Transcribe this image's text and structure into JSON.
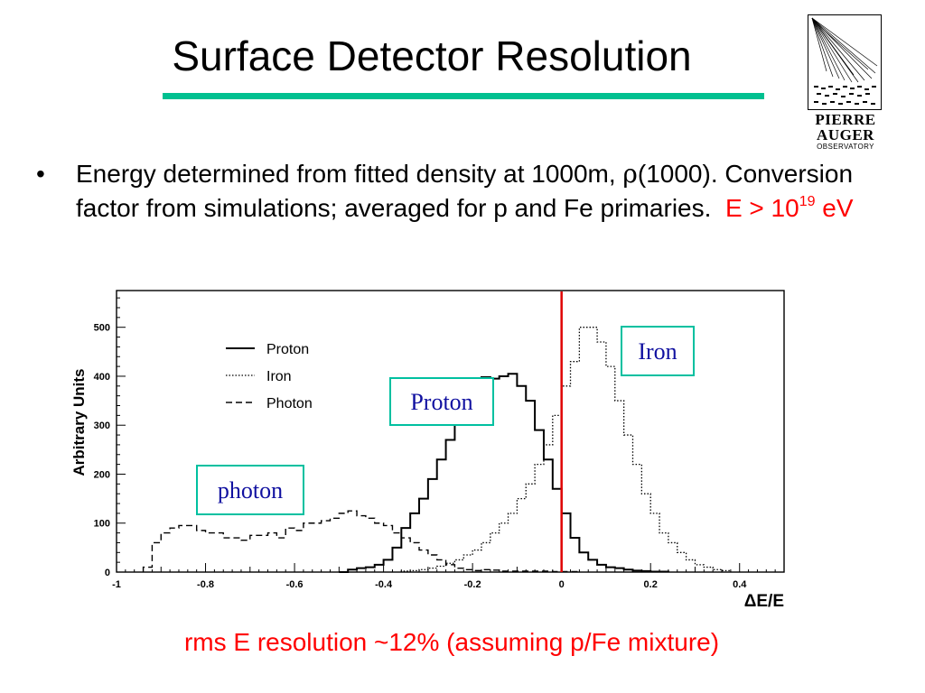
{
  "slide": {
    "title": "Surface Detector Resolution",
    "accent_color": "#00c090",
    "logo": {
      "line1": "PIERRE",
      "line2": "AUGER",
      "line3": "OBSERVATORY",
      "icon": "air-shower-icon"
    },
    "bullet": {
      "part1": "Energy determined from fitted density at 1000m, ",
      "rho": "ρ",
      "part2": "(1000). Conversion factor from simulations; averaged for p and Fe primaries.",
      "cut_prefix": "E > 10",
      "cut_exp": "19",
      "cut_suffix": " eV",
      "cut_color": "#ff0000"
    },
    "caption": "rms E resolution ~12% (assuming p/Fe mixture)",
    "caption_color": "#ff0000"
  },
  "chart_data": {
    "type": "line",
    "title": "",
    "xlabel": "ΔE/E",
    "ylabel": "Arbitrary Units",
    "xlim": [
      -1.0,
      0.5
    ],
    "ylim": [
      0,
      575
    ],
    "xticks": [
      -1,
      -0.8,
      -0.6,
      -0.4,
      -0.2,
      0,
      0.2,
      0.4
    ],
    "xtick_labels": [
      "-1",
      "-0.8",
      "-0.6",
      "-0.4",
      "-0.2",
      "0",
      "0.2",
      "0.4"
    ],
    "yticks": [
      0,
      100,
      200,
      300,
      400,
      500
    ],
    "ytick_labels": [
      "0",
      "100",
      "200",
      "300",
      "400",
      "500"
    ],
    "bin_width": 0.02,
    "legend_position": "top-left",
    "marker_line": {
      "x": 0,
      "color": "#e00000"
    },
    "box_color": "#00c0a0",
    "label_color": "#1010a0",
    "series": [
      {
        "name": "Proton",
        "dash": "solid",
        "annotation": "Proton",
        "bins_start": -0.5,
        "values": [
          0,
          5,
          8,
          10,
          15,
          25,
          50,
          90,
          120,
          150,
          190,
          230,
          270,
          330,
          370,
          395,
          398,
          395,
          400,
          405,
          380,
          350,
          290,
          230,
          170,
          120,
          70,
          40,
          25,
          15,
          10,
          8,
          5,
          3,
          2,
          1,
          1
        ]
      },
      {
        "name": "Iron",
        "dash": "dotted",
        "annotation": "Iron",
        "bins_start": -0.36,
        "values": [
          2,
          3,
          5,
          8,
          12,
          18,
          25,
          35,
          45,
          60,
          80,
          100,
          120,
          150,
          180,
          220,
          260,
          320,
          380,
          430,
          500,
          500,
          470,
          420,
          350,
          280,
          220,
          160,
          120,
          80,
          60,
          40,
          25,
          15,
          10,
          5,
          3
        ]
      },
      {
        "name": "Photon",
        "dash": "dashed",
        "annotation": "photon",
        "bins_start": -0.94,
        "values": [
          10,
          60,
          80,
          90,
          95,
          95,
          85,
          80,
          80,
          70,
          70,
          65,
          75,
          75,
          80,
          70,
          90,
          85,
          100,
          100,
          105,
          110,
          120,
          125,
          115,
          110,
          100,
          95,
          80,
          70,
          60,
          45,
          35,
          25,
          15,
          8,
          5,
          3,
          5,
          4,
          2,
          2,
          2,
          2,
          2,
          2,
          1,
          1,
          1
        ]
      }
    ]
  }
}
